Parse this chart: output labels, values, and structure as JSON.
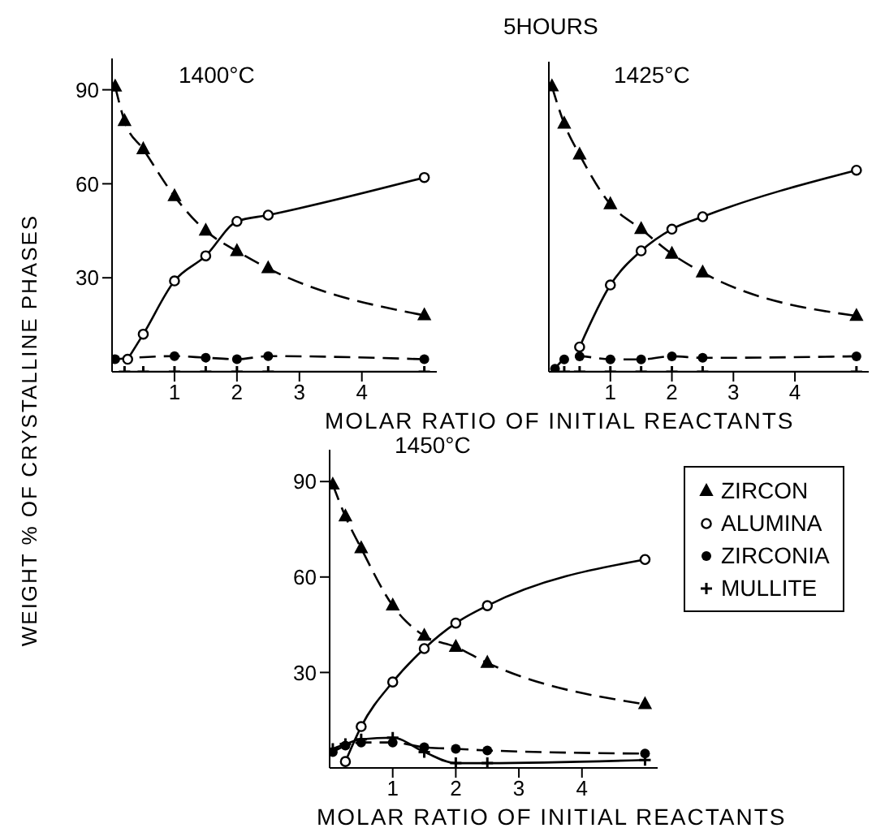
{
  "chart_data": [
    {
      "type": "line",
      "title": "1400°C",
      "ylabel": "WEIGHT % OF CRYSTALLINE PHASES",
      "xlim": [
        0,
        5.2
      ],
      "ylim": [
        0,
        100
      ],
      "xticks": [
        1,
        2,
        3,
        4
      ],
      "yticks": [
        30,
        60,
        90
      ],
      "series": [
        {
          "color": "#000000",
          "marker": "triangle",
          "line_style": "dashed",
          "x": [
            0.05,
            0.2,
            0.5,
            1,
            1.5,
            2,
            2.5,
            5
          ],
          "values": [
            91,
            80,
            71,
            56,
            45,
            38.5,
            33,
            18
          ]
        },
        {
          "color": "#000000",
          "marker": "circle",
          "line_style": "solid",
          "x": [
            0.25,
            0.5,
            1,
            1.5,
            2,
            2.5,
            5
          ],
          "values": [
            4,
            12,
            29,
            37,
            48,
            50,
            62
          ]
        },
        {
          "color": "#000000",
          "marker": "dot",
          "line_style": "dashed",
          "x": [
            0.05,
            1,
            1.5,
            2,
            2.5,
            5
          ],
          "values": [
            4,
            5,
            4.5,
            4,
            5,
            4
          ]
        },
        {
          "color": "#000000",
          "marker": "cross",
          "line_style": "solid",
          "x": [
            0.2,
            0.5,
            1,
            1.5,
            2,
            2.5,
            5
          ],
          "values": [
            0,
            0,
            0,
            0,
            0,
            0,
            0
          ]
        }
      ]
    },
    {
      "type": "line",
      "title": "1425°C",
      "xlabel": "MOLAR RATIO OF INITIAL REACTANTS",
      "annotations": [
        "5HOURS"
      ],
      "tick_labels": "x",
      "xlim": [
        0,
        5.2
      ],
      "ylim": [
        0,
        100
      ],
      "xticks": [
        1,
        2,
        3,
        4
      ],
      "yticks": [
        30,
        60,
        90
      ],
      "series": [
        {
          "color": "#000000",
          "marker": "triangle",
          "line_style": "dashed",
          "x": [
            0.05,
            0.25,
            0.5,
            1,
            1.5,
            2,
            2.5,
            5
          ],
          "values": [
            92,
            80,
            70,
            54,
            46,
            38,
            32,
            18
          ]
        },
        {
          "color": "#000000",
          "marker": "circle",
          "line_style": "solid",
          "x": [
            0.5,
            1,
            1.5,
            2,
            2.5,
            5
          ],
          "values": [
            8,
            28,
            39,
            46,
            50,
            65
          ]
        },
        {
          "color": "#000000",
          "marker": "dot",
          "line_style": "dashed",
          "x": [
            0.1,
            0.25,
            0.5,
            1,
            1.5,
            2,
            2.5,
            5
          ],
          "values": [
            1,
            4,
            5,
            4,
            4,
            5,
            4.5,
            5
          ]
        },
        {
          "color": "#000000",
          "marker": "cross",
          "line_style": "solid",
          "x": [
            0.25,
            0.5,
            1,
            1.5,
            2,
            2.5,
            5
          ],
          "values": [
            0,
            0,
            0,
            0,
            0,
            0,
            0
          ]
        }
      ]
    },
    {
      "type": "line",
      "title": "1450°C",
      "xlabel": "MOLAR RATIO OF INITIAL REACTANTS",
      "legend": "right",
      "xlim": [
        0,
        5.2
      ],
      "ylim": [
        0,
        100
      ],
      "xticks": [
        1,
        2,
        3,
        4
      ],
      "yticks": [
        30,
        60,
        90
      ],
      "series": [
        {
          "name": "ZIRCON",
          "color": "#000000",
          "marker": "triangle",
          "line_style": "dashed",
          "x": [
            0.05,
            0.25,
            0.5,
            1,
            1.5,
            2,
            2.5,
            5
          ],
          "values": [
            89,
            79,
            69,
            51,
            41.5,
            38,
            33,
            20
          ]
        },
        {
          "name": "ALUMINA",
          "color": "#000000",
          "marker": "circle",
          "line_style": "solid",
          "x": [
            0.25,
            0.5,
            1,
            1.5,
            2,
            2.5,
            5
          ],
          "values": [
            2,
            13,
            27,
            37.5,
            45.5,
            51,
            65.5
          ]
        },
        {
          "name": "ZIRCONIA",
          "color": "#000000",
          "marker": "dot",
          "line_style": "dashed",
          "x": [
            0.05,
            0.25,
            0.5,
            1,
            1.5,
            2,
            2.5,
            5
          ],
          "values": [
            5,
            7,
            8,
            8,
            6.5,
            6,
            5.5,
            4.5
          ]
        },
        {
          "name": "MULLITE",
          "color": "#000000",
          "marker": "cross",
          "line_style": "solid",
          "x": [
            0.05,
            0.25,
            0.5,
            1,
            1.5,
            2,
            2.5,
            5
          ],
          "values": [
            6,
            7.5,
            9,
            9.5,
            5,
            1.5,
            1.5,
            2.5
          ]
        }
      ]
    }
  ]
}
